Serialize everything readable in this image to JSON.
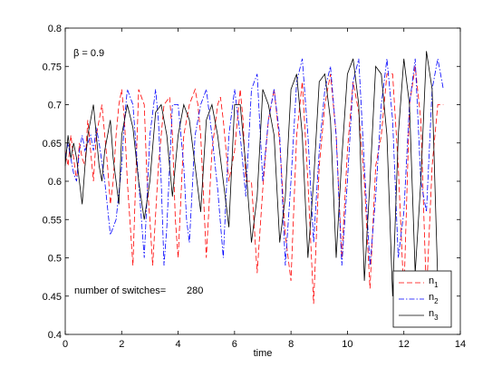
{
  "chart_data": {
    "type": "line",
    "xlabel": "time",
    "ylabel": "",
    "title": "",
    "xlim": [
      0,
      14
    ],
    "ylim": [
      0.4,
      0.8
    ],
    "xticks": [
      0,
      2,
      4,
      6,
      8,
      10,
      12,
      14
    ],
    "yticks": [
      0.4,
      0.45,
      0.5,
      0.55,
      0.6,
      0.65,
      0.7,
      0.75,
      0.8
    ],
    "grid": false,
    "legend_position": "bottom-right",
    "annotations": {
      "beta": "β = 0.9",
      "switches_label": "number of switches=",
      "switches_value": "280"
    },
    "series": [
      {
        "name": "n1",
        "name_main": "n",
        "name_sub": "1",
        "color": "#ff0000",
        "style": "dashed",
        "x": [
          0,
          0.1,
          0.2,
          0.3,
          0.4,
          0.5,
          0.6,
          0.7,
          0.8,
          0.9,
          1.0,
          1.1,
          1.2,
          1.3,
          1.4,
          1.5,
          1.6,
          1.7,
          1.8,
          1.9,
          2.0,
          2.1,
          2.2,
          2.4,
          2.6,
          2.8,
          2.9,
          3.0,
          3.1,
          3.3,
          3.5,
          3.7,
          3.8,
          3.9,
          4.0,
          4.2,
          4.4,
          4.6,
          4.7,
          4.8,
          4.9,
          5.0,
          5.2,
          5.4,
          5.5,
          5.6,
          5.8,
          6.0,
          6.2,
          6.3,
          6.4,
          6.6,
          6.8,
          7.0,
          7.2,
          7.4,
          7.6,
          7.8,
          8.0,
          8.2,
          8.4,
          8.6,
          8.8,
          9.0,
          9.2,
          9.4,
          9.6,
          9.8,
          10.0,
          10.2,
          10.4,
          10.6,
          10.8,
          11.0,
          11.2,
          11.4,
          11.6,
          11.8,
          12.0,
          12.2,
          12.4,
          12.6,
          12.8,
          13.0,
          13.2,
          13.4
        ],
        "y": [
          0.64,
          0.62,
          0.66,
          0.63,
          0.6,
          0.65,
          0.63,
          0.62,
          0.68,
          0.64,
          0.6,
          0.66,
          0.68,
          0.7,
          0.66,
          0.62,
          0.57,
          0.6,
          0.66,
          0.7,
          0.72,
          0.68,
          0.6,
          0.49,
          0.72,
          0.7,
          0.6,
          0.55,
          0.49,
          0.62,
          0.7,
          0.71,
          0.66,
          0.55,
          0.5,
          0.66,
          0.7,
          0.72,
          0.7,
          0.66,
          0.58,
          0.5,
          0.64,
          0.7,
          0.71,
          0.68,
          0.6,
          0.64,
          0.72,
          0.68,
          0.6,
          0.6,
          0.48,
          0.59,
          0.68,
          0.72,
          0.65,
          0.53,
          0.47,
          0.66,
          0.73,
          0.6,
          0.44,
          0.62,
          0.7,
          0.74,
          0.66,
          0.5,
          0.64,
          0.73,
          0.69,
          0.6,
          0.46,
          0.62,
          0.66,
          0.74,
          0.74,
          0.62,
          0.45,
          0.7,
          0.75,
          0.68,
          0.45,
          0.62,
          0.7,
          0.7
        ]
      },
      {
        "name": "n2",
        "name_main": "n",
        "name_sub": "2",
        "color": "#0000ff",
        "style": "dashdot",
        "x": [
          0,
          0.1,
          0.2,
          0.3,
          0.4,
          0.5,
          0.6,
          0.7,
          0.8,
          0.9,
          1.0,
          1.1,
          1.2,
          1.4,
          1.6,
          1.8,
          2.0,
          2.1,
          2.2,
          2.4,
          2.6,
          2.8,
          3.0,
          3.2,
          3.3,
          3.4,
          3.5,
          3.6,
          3.8,
          4.0,
          4.2,
          4.3,
          4.4,
          4.6,
          4.8,
          5.0,
          5.2,
          5.4,
          5.6,
          5.8,
          6.0,
          6.2,
          6.4,
          6.6,
          6.8,
          7.0,
          7.2,
          7.4,
          7.6,
          7.8,
          8.0,
          8.2,
          8.4,
          8.6,
          8.8,
          9.0,
          9.2,
          9.4,
          9.6,
          9.8,
          10.0,
          10.2,
          10.4,
          10.6,
          10.8,
          11.0,
          11.2,
          11.4,
          11.6,
          11.8,
          12.0,
          12.2,
          12.4,
          12.6,
          12.8,
          13.0,
          13.2,
          13.4
        ],
        "y": [
          0.63,
          0.65,
          0.63,
          0.61,
          0.6,
          0.64,
          0.66,
          0.64,
          0.65,
          0.66,
          0.64,
          0.67,
          0.65,
          0.6,
          0.53,
          0.55,
          0.62,
          0.68,
          0.72,
          0.7,
          0.6,
          0.5,
          0.66,
          0.72,
          0.68,
          0.6,
          0.49,
          0.54,
          0.7,
          0.7,
          0.62,
          0.55,
          0.52,
          0.66,
          0.7,
          0.72,
          0.66,
          0.59,
          0.5,
          0.66,
          0.72,
          0.66,
          0.58,
          0.72,
          0.74,
          0.6,
          0.68,
          0.72,
          0.66,
          0.49,
          0.6,
          0.73,
          0.76,
          0.66,
          0.52,
          0.64,
          0.72,
          0.75,
          0.66,
          0.49,
          0.6,
          0.73,
          0.76,
          0.62,
          0.49,
          0.58,
          0.7,
          0.76,
          0.68,
          0.5,
          0.56,
          0.7,
          0.76,
          0.6,
          0.56,
          0.72,
          0.76,
          0.72
        ]
      },
      {
        "name": "n3",
        "name_main": "n",
        "name_sub": "3",
        "color": "#000000",
        "style": "solid",
        "x": [
          0,
          0.1,
          0.2,
          0.3,
          0.4,
          0.5,
          0.6,
          0.7,
          0.8,
          0.9,
          1.0,
          1.1,
          1.2,
          1.3,
          1.4,
          1.5,
          1.6,
          1.7,
          1.8,
          1.9,
          2.0,
          2.2,
          2.4,
          2.6,
          2.8,
          3.0,
          3.2,
          3.4,
          3.6,
          3.8,
          4.0,
          4.2,
          4.4,
          4.6,
          4.8,
          5.0,
          5.2,
          5.4,
          5.6,
          5.8,
          6.0,
          6.2,
          6.4,
          6.6,
          6.8,
          7.0,
          7.2,
          7.4,
          7.6,
          7.8,
          8.0,
          8.2,
          8.4,
          8.6,
          8.8,
          9.0,
          9.2,
          9.4,
          9.6,
          9.8,
          10.0,
          10.2,
          10.4,
          10.6,
          10.8,
          11.0,
          11.2,
          11.4,
          11.6,
          11.8,
          12.0,
          12.2,
          12.4,
          12.6,
          12.8,
          13.0,
          13.2
        ],
        "y": [
          0.62,
          0.66,
          0.63,
          0.65,
          0.63,
          0.6,
          0.57,
          0.62,
          0.66,
          0.68,
          0.7,
          0.66,
          0.62,
          0.6,
          0.64,
          0.66,
          0.68,
          0.63,
          0.6,
          0.57,
          0.66,
          0.7,
          0.67,
          0.6,
          0.55,
          0.6,
          0.69,
          0.7,
          0.66,
          0.58,
          0.66,
          0.7,
          0.68,
          0.62,
          0.56,
          0.68,
          0.7,
          0.66,
          0.6,
          0.54,
          0.7,
          0.7,
          0.62,
          0.52,
          0.58,
          0.72,
          0.7,
          0.66,
          0.52,
          0.58,
          0.72,
          0.74,
          0.66,
          0.5,
          0.6,
          0.73,
          0.74,
          0.68,
          0.5,
          0.63,
          0.74,
          0.76,
          0.7,
          0.47,
          0.6,
          0.75,
          0.74,
          0.66,
          0.45,
          0.66,
          0.76,
          0.7,
          0.48,
          0.6,
          0.77,
          0.72,
          0.47
        ]
      }
    ]
  }
}
